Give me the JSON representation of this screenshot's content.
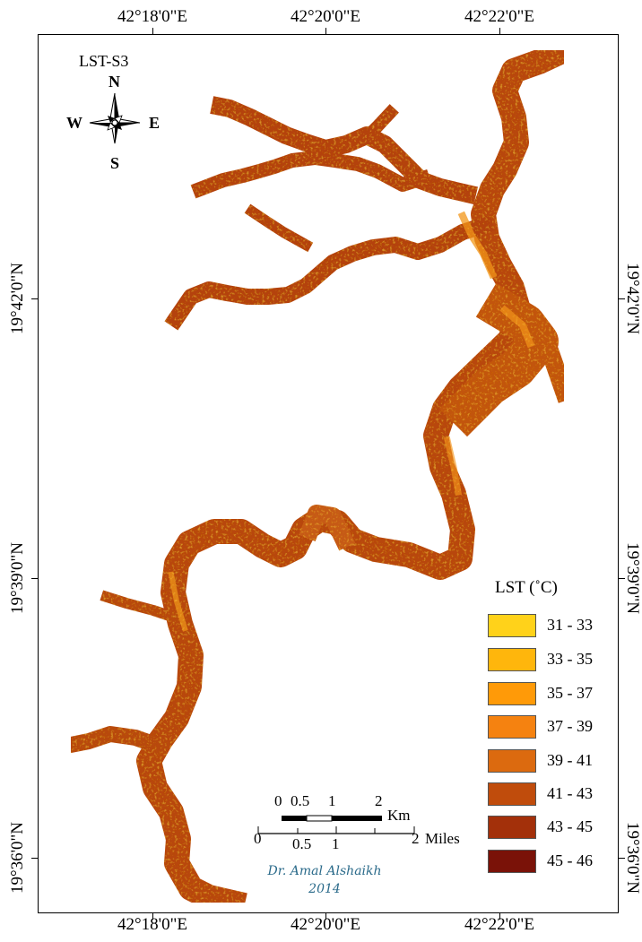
{
  "map": {
    "title": "LST-S3",
    "top_ticks": [
      "42°18'0\"E",
      "42°20'0\"E",
      "42°22'0\"E"
    ],
    "bottom_ticks": [
      "42°18'0\"E",
      "42°20'0\"E",
      "42°22'0\"E"
    ],
    "left_ticks": [
      "19°42'0\"N",
      "19°39'0\"N",
      "19°36'0\"N"
    ],
    "right_ticks": [
      "19°42'0\"N",
      "19°39'0\"N",
      "19°36'0\"N"
    ]
  },
  "compass": {
    "n": "N",
    "s": "S",
    "e": "E",
    "w": "W"
  },
  "legend": {
    "title": "LST (˚C)",
    "classes": [
      {
        "label": "31 - 33",
        "color": "#ffd21a"
      },
      {
        "label": "33 - 35",
        "color": "#ffb60c"
      },
      {
        "label": "35 - 37",
        "color": "#ff9a08"
      },
      {
        "label": "37 - 39",
        "color": "#f58210"
      },
      {
        "label": "39 - 41",
        "color": "#dc6a0f"
      },
      {
        "label": "41 - 43",
        "color": "#c04c0c"
      },
      {
        "label": "43 - 45",
        "color": "#a3300a"
      },
      {
        "label": "45 - 46",
        "color": "#7a1208"
      }
    ]
  },
  "scale_bar": {
    "km_ticks": [
      "0",
      "0.5",
      "1",
      "2"
    ],
    "km_unit": "Km",
    "mile_ticks": [
      "0",
      "0.5",
      "1",
      "2"
    ],
    "mile_unit": "Miles"
  },
  "credit": {
    "author": "Dr. Amal Alshaikh",
    "year": "2014"
  }
}
